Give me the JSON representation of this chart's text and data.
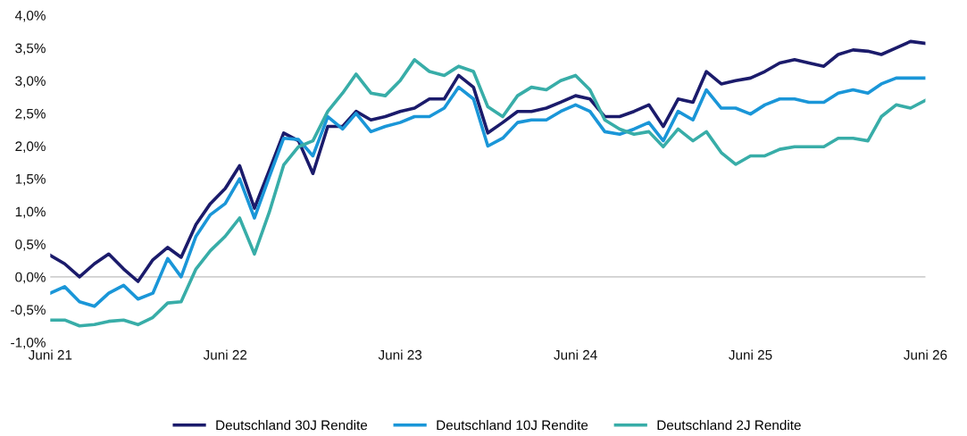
{
  "chart_data": {
    "type": "line",
    "x": [
      "2021-06-01",
      "2021-07-01",
      "2021-08-01",
      "2021-09-01",
      "2021-10-01",
      "2021-11-01",
      "2021-12-01",
      "2022-01-01",
      "2022-02-01",
      "2022-03-01",
      "2022-04-01",
      "2022-05-01",
      "2022-06-01",
      "2022-07-01",
      "2022-08-01",
      "2022-09-01",
      "2022-10-01",
      "2022-11-01",
      "2022-12-01",
      "2023-01-01",
      "2023-02-01",
      "2023-03-01",
      "2023-04-01",
      "2023-05-01",
      "2023-06-01",
      "2023-07-01",
      "2023-08-01",
      "2023-09-01",
      "2023-10-01",
      "2023-11-01",
      "2023-12-01",
      "2024-01-01",
      "2024-02-01",
      "2024-03-01",
      "2024-04-01",
      "2024-05-01",
      "2024-06-01",
      "2024-07-01",
      "2024-08-01",
      "2024-09-01",
      "2024-10-01",
      "2024-11-01",
      "2024-12-01",
      "2025-01-01",
      "2025-02-01",
      "2025-03-01",
      "2025-04-01",
      "2025-05-01",
      "2025-06-01",
      "2025-07-01",
      "2025-08-01",
      "2025-09-01",
      "2025-10-01",
      "2025-11-01",
      "2025-12-01",
      "2026-01-01",
      "2026-02-01",
      "2026-03-01",
      "2026-04-01",
      "2026-05-01",
      "2026-06-01"
    ],
    "series": [
      {
        "name": "Deutschland 30J Rendite",
        "color": "#1b1b6b",
        "values": [
          0.33,
          0.2,
          0.0,
          0.2,
          0.35,
          0.12,
          -0.07,
          0.26,
          0.45,
          0.3,
          0.8,
          1.12,
          1.35,
          1.7,
          1.05,
          1.63,
          2.2,
          2.08,
          1.58,
          2.3,
          2.3,
          2.53,
          2.4,
          2.45,
          2.53,
          2.58,
          2.72,
          2.72,
          3.08,
          2.9,
          2.2,
          2.36,
          2.53,
          2.53,
          2.58,
          2.67,
          2.77,
          2.72,
          2.45,
          2.45,
          2.53,
          2.63,
          2.3,
          2.72,
          2.67,
          3.14,
          2.95,
          3.0,
          3.04,
          3.14,
          3.27,
          3.32,
          3.27,
          3.22,
          3.4,
          3.47,
          3.45,
          3.4,
          3.5,
          3.6,
          3.57
        ]
      },
      {
        "name": "Deutschland 10J Rendite",
        "color": "#1a96d8",
        "values": [
          -0.25,
          -0.15,
          -0.38,
          -0.45,
          -0.25,
          -0.13,
          -0.34,
          -0.25,
          0.28,
          0.0,
          0.62,
          0.95,
          1.12,
          1.5,
          0.9,
          1.53,
          2.12,
          2.1,
          1.85,
          2.45,
          2.26,
          2.5,
          2.22,
          2.3,
          2.36,
          2.45,
          2.45,
          2.58,
          2.9,
          2.72,
          2.0,
          2.12,
          2.36,
          2.4,
          2.4,
          2.53,
          2.63,
          2.53,
          2.22,
          2.18,
          2.26,
          2.36,
          2.08,
          2.53,
          2.4,
          2.86,
          2.58,
          2.58,
          2.49,
          2.63,
          2.72,
          2.72,
          2.67,
          2.67,
          2.81,
          2.86,
          2.81,
          2.95,
          3.04,
          3.04,
          3.04
        ]
      },
      {
        "name": "Deutschland 2J Rendite",
        "color": "#38ada8",
        "values": [
          -0.66,
          -0.66,
          -0.75,
          -0.73,
          -0.68,
          -0.66,
          -0.73,
          -0.62,
          -0.4,
          -0.38,
          0.12,
          0.4,
          0.62,
          0.9,
          0.35,
          0.99,
          1.71,
          1.99,
          2.08,
          2.53,
          2.81,
          3.1,
          2.81,
          2.77,
          3.0,
          3.32,
          3.14,
          3.08,
          3.22,
          3.14,
          2.6,
          2.45,
          2.77,
          2.9,
          2.86,
          3.0,
          3.08,
          2.86,
          2.4,
          2.26,
          2.18,
          2.22,
          1.99,
          2.26,
          2.08,
          2.22,
          1.9,
          1.72,
          1.85,
          1.85,
          1.95,
          1.99,
          1.99,
          1.99,
          2.12,
          2.12,
          2.08,
          2.45,
          2.63,
          2.58,
          2.7
        ]
      }
    ],
    "xlim": [
      "2021-06-01",
      "2026-06-01"
    ],
    "xticks": [
      {
        "value": "2021-06-01",
        "label": "Juni 21"
      },
      {
        "value": "2022-06-01",
        "label": "Juni 22"
      },
      {
        "value": "2023-06-01",
        "label": "Juni 23"
      },
      {
        "value": "2024-06-01",
        "label": "Juni 24"
      },
      {
        "value": "2025-06-01",
        "label": "Juni 25"
      },
      {
        "value": "2026-06-01",
        "label": "Juni 26"
      }
    ],
    "ylim": [
      -1.0,
      4.0
    ],
    "yticks": [
      {
        "value": -1.0,
        "label": "-1,0%"
      },
      {
        "value": -0.5,
        "label": "-0,5%"
      },
      {
        "value": 0.0,
        "label": "0,0%"
      },
      {
        "value": 0.5,
        "label": "0,5%"
      },
      {
        "value": 1.0,
        "label": "1,0%"
      },
      {
        "value": 1.5,
        "label": "1,5%"
      },
      {
        "value": 2.0,
        "label": "2,0%"
      },
      {
        "value": 2.5,
        "label": "2,5%"
      },
      {
        "value": 3.0,
        "label": "3,0%"
      },
      {
        "value": 3.5,
        "label": "3,5%"
      },
      {
        "value": 4.0,
        "label": "4,0%"
      }
    ],
    "ref_lines": [
      {
        "axis": "y",
        "value": 0.0,
        "color": "#d0d0d0"
      }
    ],
    "grid": false,
    "legend": "bottom",
    "marker": "none",
    "line_style": "solid"
  }
}
